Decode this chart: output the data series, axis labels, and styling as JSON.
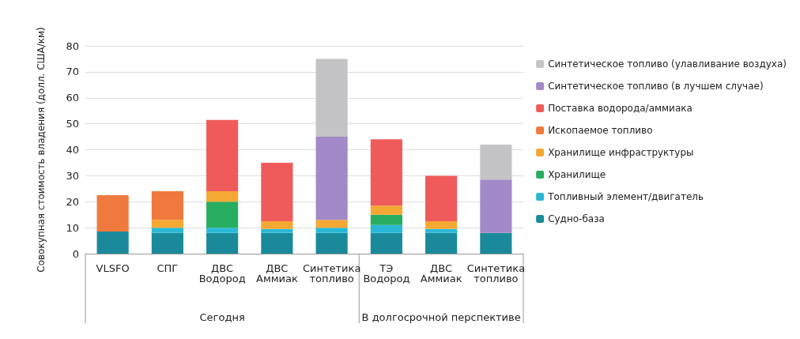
{
  "chart_data": {
    "type": "bar",
    "stacked": true,
    "ylabel": "Совокупная стоимость владения (долл. США/км)",
    "categories": [
      "VLSFO",
      "СПГ",
      "ДВС\nВодород",
      "ДВС\nАммиак",
      "Синтетика\nтопливо",
      "ТЭ\nВодород",
      "ДВС\nАммиак",
      "Синтетика\nтопливо"
    ],
    "series": [
      {
        "name": "Судно-база",
        "color": "#1a8a9a",
        "values": [
          8.5,
          8,
          8,
          8,
          8,
          8,
          8,
          8
        ]
      },
      {
        "name": "Топливный элемент/двигатель",
        "color": "#2ab8d6",
        "values": [
          null,
          2,
          2,
          1.5,
          2,
          3,
          1.5,
          null
        ]
      },
      {
        "name": "Хранилище",
        "color": "#27ae60",
        "values": [
          null,
          null,
          10,
          null,
          null,
          4,
          null,
          null
        ]
      },
      {
        "name": "Хранилище инфраструктуры",
        "color": "#f5a833",
        "values": [
          null,
          3,
          4,
          3,
          3,
          3.5,
          3,
          null
        ]
      },
      {
        "name": "Ископаемое топливо",
        "color": "#f07a3e",
        "values": [
          14,
          11,
          null,
          null,
          null,
          null,
          null,
          null
        ]
      },
      {
        "name": "Поставка водорода/аммиака",
        "color": "#ef5b5b",
        "values": [
          null,
          null,
          27.5,
          22.5,
          null,
          25.5,
          17.5,
          null
        ]
      },
      {
        "name": "Синтетическое топливо (в лучшем случае)",
        "color": "#a18ac7",
        "values": [
          null,
          null,
          null,
          null,
          32,
          null,
          null,
          20.5
        ]
      },
      {
        "name": "Синтетическое топливо (улавливание воздуха)",
        "color": "#c4c4c7",
        "values": [
          null,
          null,
          null,
          null,
          30,
          null,
          null,
          13.5
        ]
      }
    ],
    "ylim": [
      0,
      80
    ],
    "yticks": [
      0,
      10,
      20,
      30,
      40,
      50,
      60,
      70,
      80
    ],
    "grid": "y",
    "legend": "right",
    "annotations": [
      "Сегодня",
      "В долгосрочной перспективе"
    ]
  }
}
